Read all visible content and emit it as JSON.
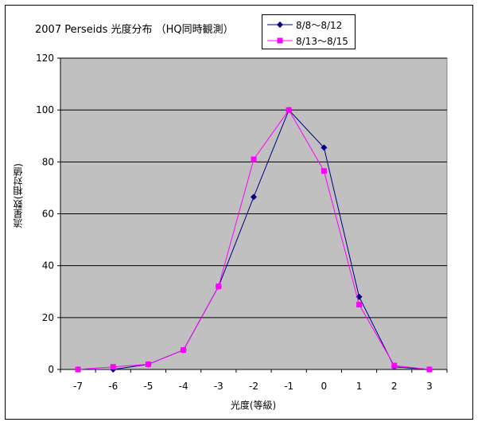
{
  "chart_data": {
    "type": "line",
    "title": "2007 Perseids 光度分布 （HQ同時観測）",
    "xlabel": "光度(等級)",
    "ylabel": "流星数(相対値)",
    "x": [
      -7,
      -6,
      -5,
      -4,
      -3,
      -2,
      -1,
      0,
      1,
      2,
      3
    ],
    "x_tick_labels": [
      "-7",
      "-6",
      "-5",
      "-4",
      "-3",
      "-2",
      "-1",
      "0",
      "1",
      "2",
      "3"
    ],
    "ylim": [
      0,
      120
    ],
    "y_ticks": [
      0,
      20,
      40,
      60,
      80,
      100,
      120
    ],
    "grid": "horizontal",
    "legend_position": "top-right",
    "plot_background": "#c0c0c0",
    "series": [
      {
        "name": "8/8～8/12",
        "color": "#000080",
        "marker": "diamond",
        "values": [
          0,
          0,
          2,
          7.5,
          32,
          66.5,
          100,
          85.5,
          28,
          1,
          0
        ]
      },
      {
        "name": "8/13～8/15",
        "color": "#ff00ff",
        "marker": "square",
        "values": [
          0,
          1,
          2,
          7.5,
          32,
          81,
          100,
          76.5,
          25,
          1.5,
          0
        ]
      }
    ]
  }
}
